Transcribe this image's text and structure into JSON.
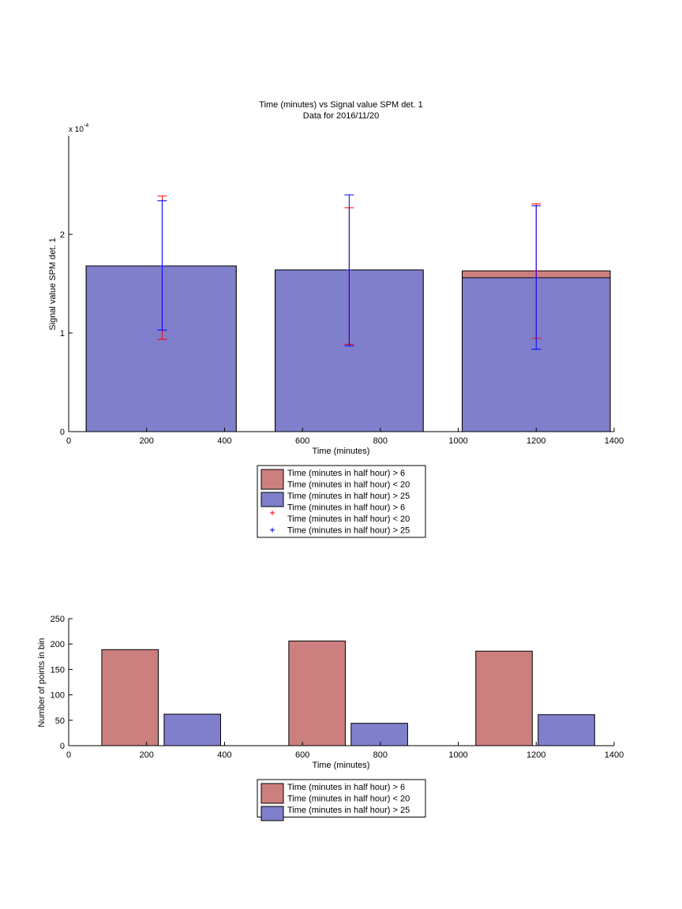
{
  "colors": {
    "red_series": "#cc7f7f",
    "blue_series": "#7f7fcc",
    "red_error": "#ff0000",
    "blue_error": "#0000ff"
  },
  "chart_data": [
    {
      "type": "bar",
      "title": "Time (minutes) vs Signal value SPM det. 1",
      "subtitle": "Data for 2016/11/20",
      "xlabel": "Time (minutes)",
      "ylabel": "Signal value SPM det. 1",
      "exponent_label": "x 10",
      "exponent_power": "-4",
      "xlim": [
        0,
        1400
      ],
      "ylim": [
        0,
        0.0003
      ],
      "x_ticks": [
        0,
        200,
        400,
        600,
        800,
        1000,
        1200,
        1400
      ],
      "y_ticks": [
        0,
        0.0001,
        0.0002
      ],
      "y_tick_labels": [
        "0",
        "1",
        "2"
      ],
      "grid": false,
      "legend_position": "below",
      "bins": [
        {
          "x_start": 45,
          "x_end": 430,
          "center": 240
        },
        {
          "x_start": 530,
          "x_end": 910,
          "center": 720
        },
        {
          "x_start": 1010,
          "x_end": 1390,
          "center": 1200
        }
      ],
      "series": [
        {
          "name": "Time (minutes in half hour) > 6\nTime (minutes in half hour) < 20",
          "values": [
            0.000168,
            0.000164,
            0.000163
          ],
          "error_low": [
            9.35e-05,
            8.85e-05,
            9.45e-05
          ],
          "error_high": [
            0.000239,
            0.000227,
            0.000231
          ]
        },
        {
          "name": "Time (minutes in half hour) > 25",
          "values": [
            0.000168,
            0.000164,
            0.000156
          ],
          "error_low": [
            0.000103,
            8.7e-05,
            8.35e-05
          ],
          "error_high": [
            0.000234,
            0.00024,
            0.000229
          ]
        }
      ],
      "legend": [
        {
          "kind": "bar",
          "color": "red_series",
          "lines": [
            "Time (minutes in half hour) > 6",
            "Time (minutes in half hour) < 20"
          ]
        },
        {
          "kind": "bar",
          "color": "blue_series",
          "lines": [
            "Time (minutes in half hour) > 25"
          ]
        },
        {
          "kind": "marker",
          "color": "red_error",
          "lines": [
            "Time (minutes in half hour) > 6",
            "Time (minutes in half hour) < 20"
          ]
        },
        {
          "kind": "marker",
          "color": "blue_error",
          "lines": [
            "Time (minutes in half hour) > 25"
          ]
        }
      ]
    },
    {
      "type": "bar",
      "title": "",
      "xlabel": "Time (minutes)",
      "ylabel": "Number of points in bin",
      "xlim": [
        0,
        1400
      ],
      "ylim": [
        0,
        250
      ],
      "x_ticks": [
        0,
        200,
        400,
        600,
        800,
        1000,
        1200,
        1400
      ],
      "y_ticks": [
        0,
        50,
        100,
        150,
        200,
        250
      ],
      "grid": false,
      "legend_position": "below",
      "bars": [
        {
          "series": 0,
          "x_start": 85,
          "x_end": 230,
          "value": 189
        },
        {
          "series": 1,
          "x_start": 245,
          "x_end": 390,
          "value": 62
        },
        {
          "series": 0,
          "x_start": 565,
          "x_end": 710,
          "value": 206
        },
        {
          "series": 1,
          "x_start": 725,
          "x_end": 870,
          "value": 44
        },
        {
          "series": 0,
          "x_start": 1045,
          "x_end": 1190,
          "value": 186
        },
        {
          "series": 1,
          "x_start": 1205,
          "x_end": 1350,
          "value": 61
        }
      ],
      "series": [
        {
          "name": "Time (minutes in half hour) > 6\nTime (minutes in half hour) < 20",
          "values": [
            189,
            206,
            186
          ]
        },
        {
          "name": "Time (minutes in half hour) > 25",
          "values": [
            62,
            44,
            61
          ]
        }
      ],
      "legend": [
        {
          "kind": "bar",
          "color": "red_series",
          "lines": [
            "Time (minutes in half hour) > 6",
            "Time (minutes in half hour) < 20"
          ]
        },
        {
          "kind": "bar",
          "color": "blue_series",
          "lines": [
            "Time (minutes in half hour) > 25"
          ]
        }
      ]
    }
  ]
}
